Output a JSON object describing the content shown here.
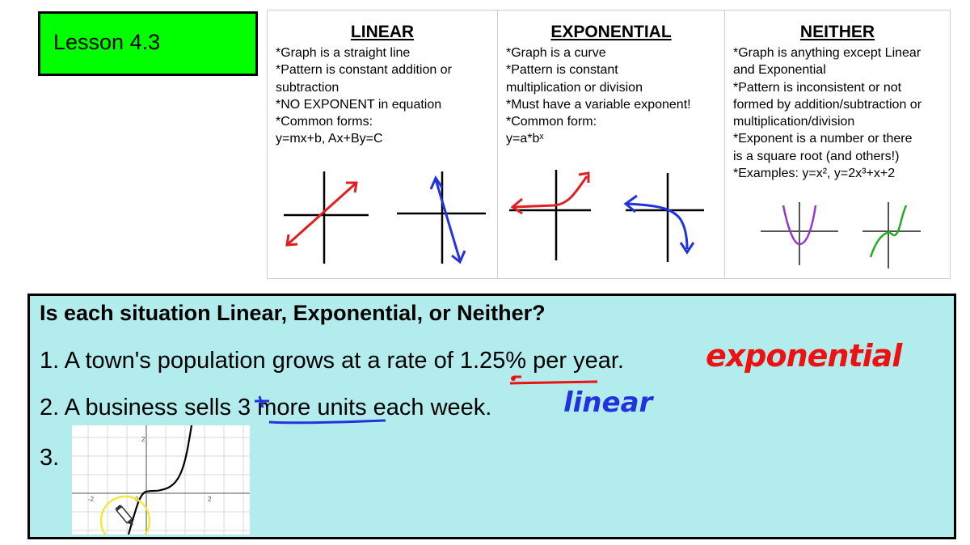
{
  "lesson": {
    "title": "Lesson 4.3"
  },
  "table": {
    "linear": {
      "heading": "LINEAR",
      "lines": [
        "*Graph is a straight line",
        "*Pattern is constant addition or",
        "subtraction",
        "*NO EXPONENT in equation",
        "*Common forms:",
        "y=mx+b,   Ax+By=C"
      ]
    },
    "exponential": {
      "heading": "EXPONENTIAL",
      "lines": [
        "*Graph is a curve",
        "*Pattern is constant",
        "multiplication or division",
        "*Must have a variable exponent!",
        "*Common form:",
        "y=a*bˣ"
      ]
    },
    "neither": {
      "heading": "NEITHER",
      "lines": [
        "*Graph is anything except Linear",
        "and Exponential",
        "*Pattern is inconsistent or not",
        "formed by addition/subtraction or",
        "multiplication/division",
        "*Exponent is a number or there",
        "is a square root (and others!)",
        "*Examples: y=x²,   y=2x³+x+2"
      ]
    }
  },
  "questions": {
    "heading": "Is each situation Linear, Exponential, or Neither?",
    "q1": {
      "before": "1. A town's population grows at a rate of ",
      "highlight": "1.25%",
      "after": " per year.",
      "answer": "exponential"
    },
    "q2": {
      "before": "2. A business sells ",
      "highlight": "3 more units",
      "after": " each week.",
      "answer": "linear"
    },
    "q3": {
      "label": "3."
    }
  },
  "graph": {
    "x_ticks": [
      "-2",
      "0",
      "2"
    ],
    "y_ticks": [
      "2"
    ]
  },
  "colors": {
    "lesson_bg": "#00ff00",
    "question_bg": "#b3ecec",
    "ink_red": "#ee1111",
    "ink_blue": "#2233dd",
    "ink_green": "#22aa22",
    "ink_purple": "#9933cc",
    "highlighter": "#f2ea3a"
  },
  "icons": [
    "pencil-icon"
  ]
}
